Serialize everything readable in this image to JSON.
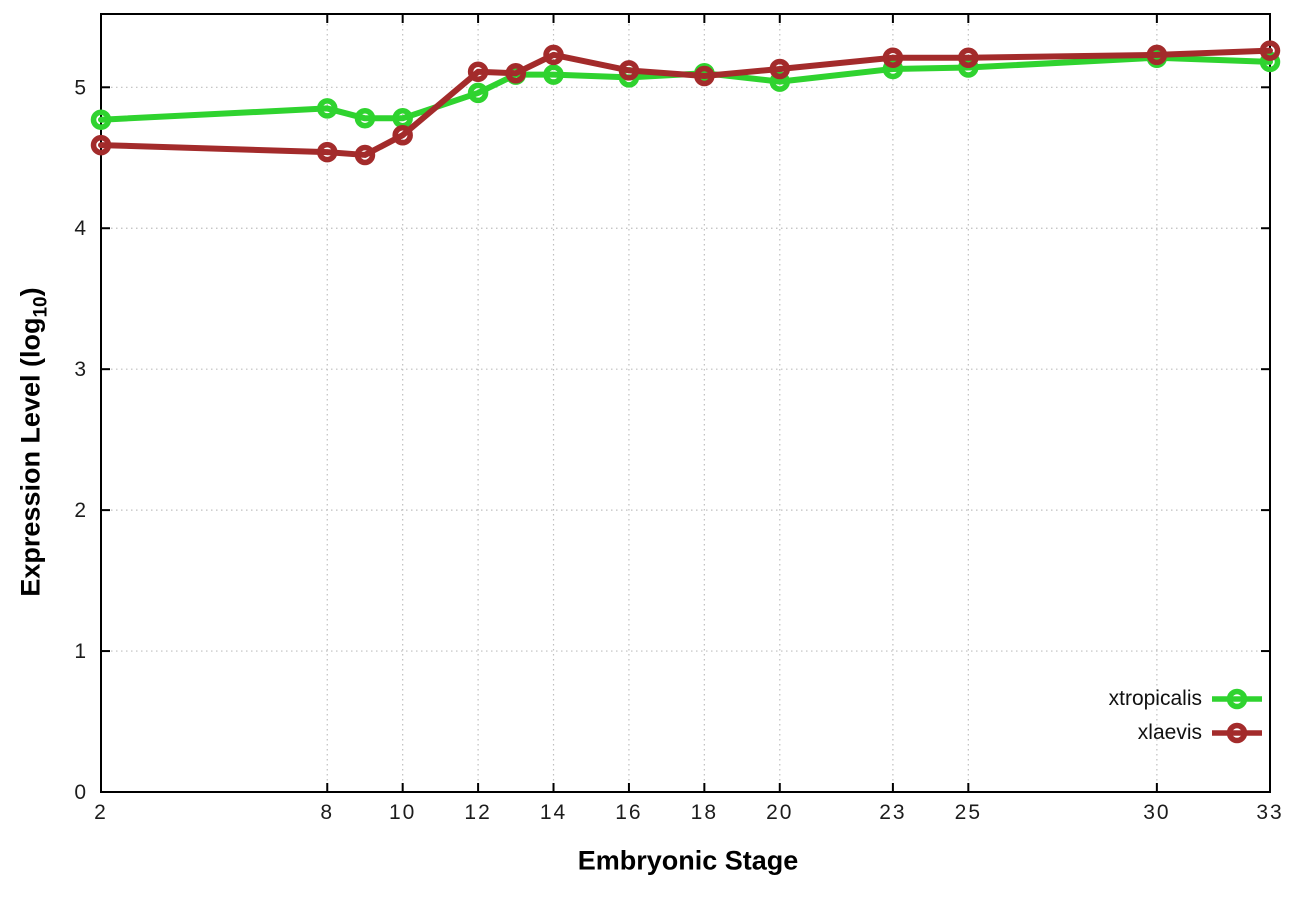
{
  "chart_data": {
    "type": "line",
    "title": "",
    "xlabel": "Embryonic Stage",
    "ylabel_parts": {
      "prefix": "Expression Level (log",
      "sub": "10",
      "suffix": ")"
    },
    "x": [
      2,
      8,
      9,
      10,
      12,
      13,
      14,
      16,
      18,
      20,
      23,
      25,
      30,
      33
    ],
    "x_ticks": [
      2,
      8,
      10,
      12,
      14,
      16,
      18,
      20,
      23,
      25,
      30,
      33
    ],
    "y_ticks": [
      0,
      1,
      2,
      3,
      4,
      5
    ],
    "xlim": [
      2,
      33
    ],
    "ylim": [
      0,
      5.52
    ],
    "grid": true,
    "marker_style": "open-circle-on-line",
    "legend_position": "inside-bottom-right",
    "series": [
      {
        "name": "xtropicalis",
        "color": "#2fd32f",
        "values": [
          4.77,
          4.85,
          4.78,
          4.78,
          4.96,
          5.09,
          5.09,
          5.07,
          5.1,
          5.04,
          5.13,
          5.14,
          5.21,
          5.18
        ]
      },
      {
        "name": "xlaevis",
        "color": "#a32b2b",
        "values": [
          4.59,
          4.54,
          4.52,
          4.66,
          5.11,
          5.1,
          5.23,
          5.12,
          5.08,
          5.13,
          5.21,
          5.21,
          5.23,
          5.26
        ]
      }
    ]
  },
  "colors": {
    "background": "#ffffff",
    "grid": "#bfbfbf",
    "axis": "#000000"
  }
}
